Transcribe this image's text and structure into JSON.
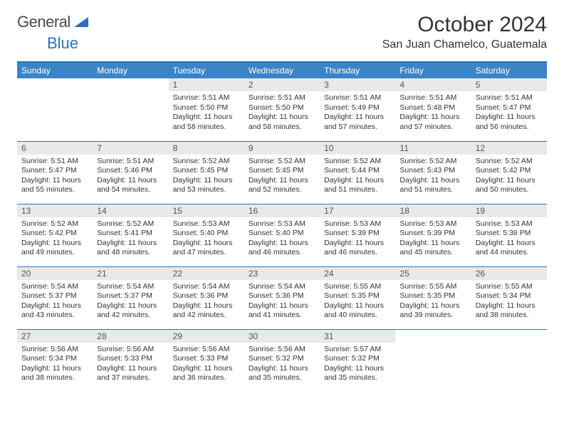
{
  "brand": {
    "name_a": "General",
    "name_b": "Blue"
  },
  "title": "October 2024",
  "location": "San Juan Chamelco, Guatemala",
  "colors": {
    "header_bg": "#3a85c8",
    "border": "#2d72b8",
    "daynum_bg": "#e9e9e9"
  },
  "day_headers": [
    "Sunday",
    "Monday",
    "Tuesday",
    "Wednesday",
    "Thursday",
    "Friday",
    "Saturday"
  ],
  "weeks": [
    [
      {
        "empty": true
      },
      {
        "empty": true
      },
      {
        "day": "1",
        "sunrise": "Sunrise: 5:51 AM",
        "sunset": "Sunset: 5:50 PM",
        "daylight": "Daylight: 11 hours and 58 minutes."
      },
      {
        "day": "2",
        "sunrise": "Sunrise: 5:51 AM",
        "sunset": "Sunset: 5:50 PM",
        "daylight": "Daylight: 11 hours and 58 minutes."
      },
      {
        "day": "3",
        "sunrise": "Sunrise: 5:51 AM",
        "sunset": "Sunset: 5:49 PM",
        "daylight": "Daylight: 11 hours and 57 minutes."
      },
      {
        "day": "4",
        "sunrise": "Sunrise: 5:51 AM",
        "sunset": "Sunset: 5:48 PM",
        "daylight": "Daylight: 11 hours and 57 minutes."
      },
      {
        "day": "5",
        "sunrise": "Sunrise: 5:51 AM",
        "sunset": "Sunset: 5:47 PM",
        "daylight": "Daylight: 11 hours and 56 minutes."
      }
    ],
    [
      {
        "day": "6",
        "sunrise": "Sunrise: 5:51 AM",
        "sunset": "Sunset: 5:47 PM",
        "daylight": "Daylight: 11 hours and 55 minutes."
      },
      {
        "day": "7",
        "sunrise": "Sunrise: 5:51 AM",
        "sunset": "Sunset: 5:46 PM",
        "daylight": "Daylight: 11 hours and 54 minutes."
      },
      {
        "day": "8",
        "sunrise": "Sunrise: 5:52 AM",
        "sunset": "Sunset: 5:45 PM",
        "daylight": "Daylight: 11 hours and 53 minutes."
      },
      {
        "day": "9",
        "sunrise": "Sunrise: 5:52 AM",
        "sunset": "Sunset: 5:45 PM",
        "daylight": "Daylight: 11 hours and 52 minutes."
      },
      {
        "day": "10",
        "sunrise": "Sunrise: 5:52 AM",
        "sunset": "Sunset: 5:44 PM",
        "daylight": "Daylight: 11 hours and 51 minutes."
      },
      {
        "day": "11",
        "sunrise": "Sunrise: 5:52 AM",
        "sunset": "Sunset: 5:43 PM",
        "daylight": "Daylight: 11 hours and 51 minutes."
      },
      {
        "day": "12",
        "sunrise": "Sunrise: 5:52 AM",
        "sunset": "Sunset: 5:42 PM",
        "daylight": "Daylight: 11 hours and 50 minutes."
      }
    ],
    [
      {
        "day": "13",
        "sunrise": "Sunrise: 5:52 AM",
        "sunset": "Sunset: 5:42 PM",
        "daylight": "Daylight: 11 hours and 49 minutes."
      },
      {
        "day": "14",
        "sunrise": "Sunrise: 5:52 AM",
        "sunset": "Sunset: 5:41 PM",
        "daylight": "Daylight: 11 hours and 48 minutes."
      },
      {
        "day": "15",
        "sunrise": "Sunrise: 5:53 AM",
        "sunset": "Sunset: 5:40 PM",
        "daylight": "Daylight: 11 hours and 47 minutes."
      },
      {
        "day": "16",
        "sunrise": "Sunrise: 5:53 AM",
        "sunset": "Sunset: 5:40 PM",
        "daylight": "Daylight: 11 hours and 46 minutes."
      },
      {
        "day": "17",
        "sunrise": "Sunrise: 5:53 AM",
        "sunset": "Sunset: 5:39 PM",
        "daylight": "Daylight: 11 hours and 46 minutes."
      },
      {
        "day": "18",
        "sunrise": "Sunrise: 5:53 AM",
        "sunset": "Sunset: 5:39 PM",
        "daylight": "Daylight: 11 hours and 45 minutes."
      },
      {
        "day": "19",
        "sunrise": "Sunrise: 5:53 AM",
        "sunset": "Sunset: 5:38 PM",
        "daylight": "Daylight: 11 hours and 44 minutes."
      }
    ],
    [
      {
        "day": "20",
        "sunrise": "Sunrise: 5:54 AM",
        "sunset": "Sunset: 5:37 PM",
        "daylight": "Daylight: 11 hours and 43 minutes."
      },
      {
        "day": "21",
        "sunrise": "Sunrise: 5:54 AM",
        "sunset": "Sunset: 5:37 PM",
        "daylight": "Daylight: 11 hours and 42 minutes."
      },
      {
        "day": "22",
        "sunrise": "Sunrise: 5:54 AM",
        "sunset": "Sunset: 5:36 PM",
        "daylight": "Daylight: 11 hours and 42 minutes."
      },
      {
        "day": "23",
        "sunrise": "Sunrise: 5:54 AM",
        "sunset": "Sunset: 5:36 PM",
        "daylight": "Daylight: 11 hours and 41 minutes."
      },
      {
        "day": "24",
        "sunrise": "Sunrise: 5:55 AM",
        "sunset": "Sunset: 5:35 PM",
        "daylight": "Daylight: 11 hours and 40 minutes."
      },
      {
        "day": "25",
        "sunrise": "Sunrise: 5:55 AM",
        "sunset": "Sunset: 5:35 PM",
        "daylight": "Daylight: 11 hours and 39 minutes."
      },
      {
        "day": "26",
        "sunrise": "Sunrise: 5:55 AM",
        "sunset": "Sunset: 5:34 PM",
        "daylight": "Daylight: 11 hours and 38 minutes."
      }
    ],
    [
      {
        "day": "27",
        "sunrise": "Sunrise: 5:56 AM",
        "sunset": "Sunset: 5:34 PM",
        "daylight": "Daylight: 11 hours and 38 minutes."
      },
      {
        "day": "28",
        "sunrise": "Sunrise: 5:56 AM",
        "sunset": "Sunset: 5:33 PM",
        "daylight": "Daylight: 11 hours and 37 minutes."
      },
      {
        "day": "29",
        "sunrise": "Sunrise: 5:56 AM",
        "sunset": "Sunset: 5:33 PM",
        "daylight": "Daylight: 11 hours and 36 minutes."
      },
      {
        "day": "30",
        "sunrise": "Sunrise: 5:56 AM",
        "sunset": "Sunset: 5:32 PM",
        "daylight": "Daylight: 11 hours and 35 minutes."
      },
      {
        "day": "31",
        "sunrise": "Sunrise: 5:57 AM",
        "sunset": "Sunset: 5:32 PM",
        "daylight": "Daylight: 11 hours and 35 minutes."
      },
      {
        "empty": true
      },
      {
        "empty": true
      }
    ]
  ]
}
